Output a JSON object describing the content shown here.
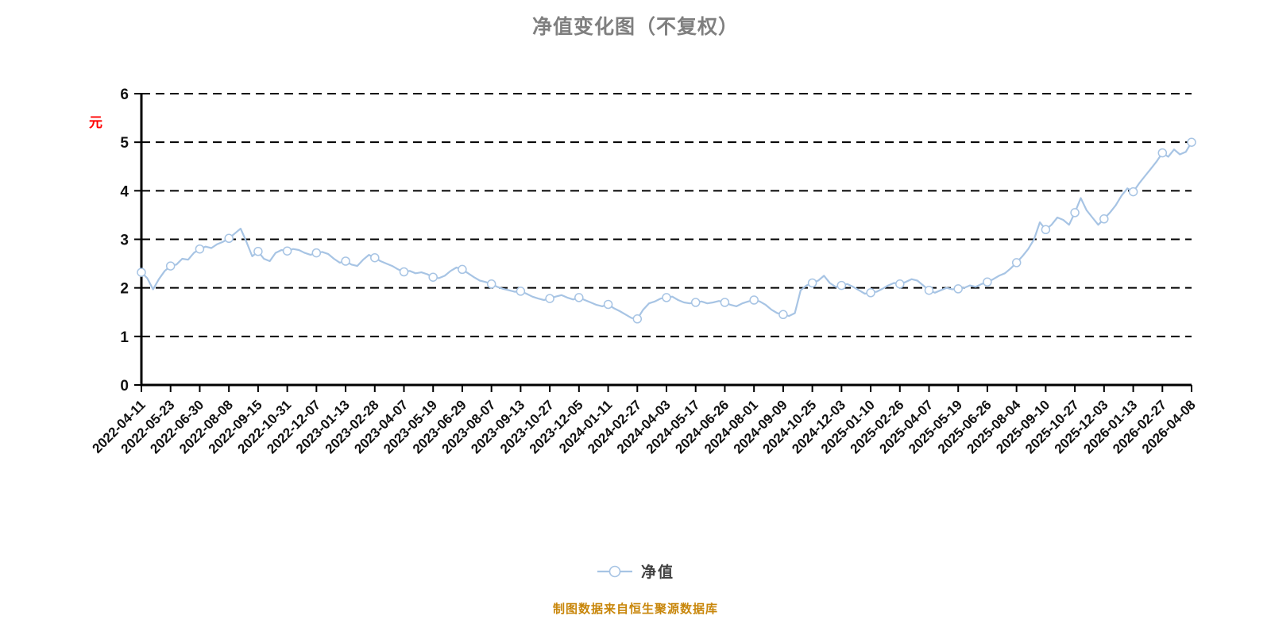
{
  "colors": {
    "line": "#a7c4e4",
    "marker_fill": "#ffffff",
    "axis": "#000000",
    "grid": "#000000",
    "tick_text": "#111111",
    "title_text": "#7f7f7f",
    "unit_text": "#ff0000",
    "legend_text": "#404040",
    "source_text": "#c8860a"
  },
  "chart_data": {
    "type": "line",
    "title": "净值变化图（不复权）",
    "ylabel": "元",
    "source_note": "制图数据来自恒生聚源数据库",
    "ylim": [
      0,
      6
    ],
    "yticks": [
      0,
      1,
      2,
      3,
      4,
      5,
      6
    ],
    "grid": "dashed-horizontal",
    "legend_position": "bottom-center",
    "x_tick_labels": [
      "2022-04-11",
      "2022-05-23",
      "2022-06-30",
      "2022-08-08",
      "2022-09-15",
      "2022-10-31",
      "2022-12-07",
      "2023-01-13",
      "2023-02-28",
      "2023-04-07",
      "2023-05-19",
      "2023-06-29",
      "2023-08-07",
      "2023-09-13",
      "2023-10-27",
      "2023-12-05",
      "2024-01-11",
      "2024-02-27",
      "2024-04-03",
      "2024-05-17",
      "2024-06-26",
      "2024-08-01",
      "2024-09-09",
      "2024-10-25",
      "2024-12-03",
      "2025-01-10",
      "2025-02-26",
      "2025-04-07",
      "2025-05-19",
      "2025-06-26",
      "2025-08-04",
      "2025-09-10",
      "2025-10-27",
      "2025-12-03",
      "2026-01-13",
      "2026-02-27",
      "2026-04-08"
    ],
    "series": [
      {
        "name": "净值",
        "marker_every": 5,
        "values": [
          2.32,
          2.2,
          1.97,
          2.18,
          2.35,
          2.45,
          2.48,
          2.6,
          2.58,
          2.72,
          2.8,
          2.85,
          2.82,
          2.9,
          2.95,
          3.02,
          3.12,
          3.22,
          2.95,
          2.65,
          2.75,
          2.6,
          2.55,
          2.72,
          2.78,
          2.76,
          2.8,
          2.78,
          2.72,
          2.68,
          2.72,
          2.74,
          2.7,
          2.6,
          2.52,
          2.55,
          2.48,
          2.45,
          2.58,
          2.68,
          2.62,
          2.55,
          2.5,
          2.45,
          2.38,
          2.33,
          2.35,
          2.3,
          2.32,
          2.28,
          2.22,
          2.2,
          2.25,
          2.35,
          2.42,
          2.38,
          2.3,
          2.22,
          2.15,
          2.12,
          2.08,
          2.02,
          1.98,
          1.95,
          1.92,
          1.93,
          1.88,
          1.82,
          1.78,
          1.75,
          1.78,
          1.82,
          1.85,
          1.8,
          1.76,
          1.8,
          1.75,
          1.7,
          1.65,
          1.62,
          1.66,
          1.58,
          1.52,
          1.45,
          1.38,
          1.36,
          1.55,
          1.68,
          1.72,
          1.78,
          1.8,
          1.82,
          1.75,
          1.7,
          1.68,
          1.7,
          1.72,
          1.68,
          1.7,
          1.73,
          1.7,
          1.65,
          1.62,
          1.68,
          1.72,
          1.75,
          1.72,
          1.65,
          1.55,
          1.48,
          1.45,
          1.42,
          1.48,
          1.95,
          2.05,
          2.1,
          2.15,
          2.25,
          2.1,
          2.02,
          2.05,
          2.08,
          2.02,
          1.95,
          1.88,
          1.9,
          1.92,
          1.98,
          2.05,
          2.1,
          2.08,
          2.12,
          2.18,
          2.15,
          2.05,
          1.95,
          1.9,
          1.95,
          2.0,
          1.97,
          1.98,
          2.0,
          2.05,
          2.02,
          2.08,
          2.12,
          2.18,
          2.25,
          2.3,
          2.4,
          2.52,
          2.65,
          2.8,
          3.0,
          3.35,
          3.2,
          3.3,
          3.45,
          3.4,
          3.3,
          3.55,
          3.85,
          3.6,
          3.45,
          3.3,
          3.42,
          3.55,
          3.7,
          3.9,
          4.05,
          3.98,
          4.15,
          4.3,
          4.45,
          4.6,
          4.78,
          4.7,
          4.85,
          4.75,
          4.8,
          5.0
        ]
      }
    ]
  }
}
